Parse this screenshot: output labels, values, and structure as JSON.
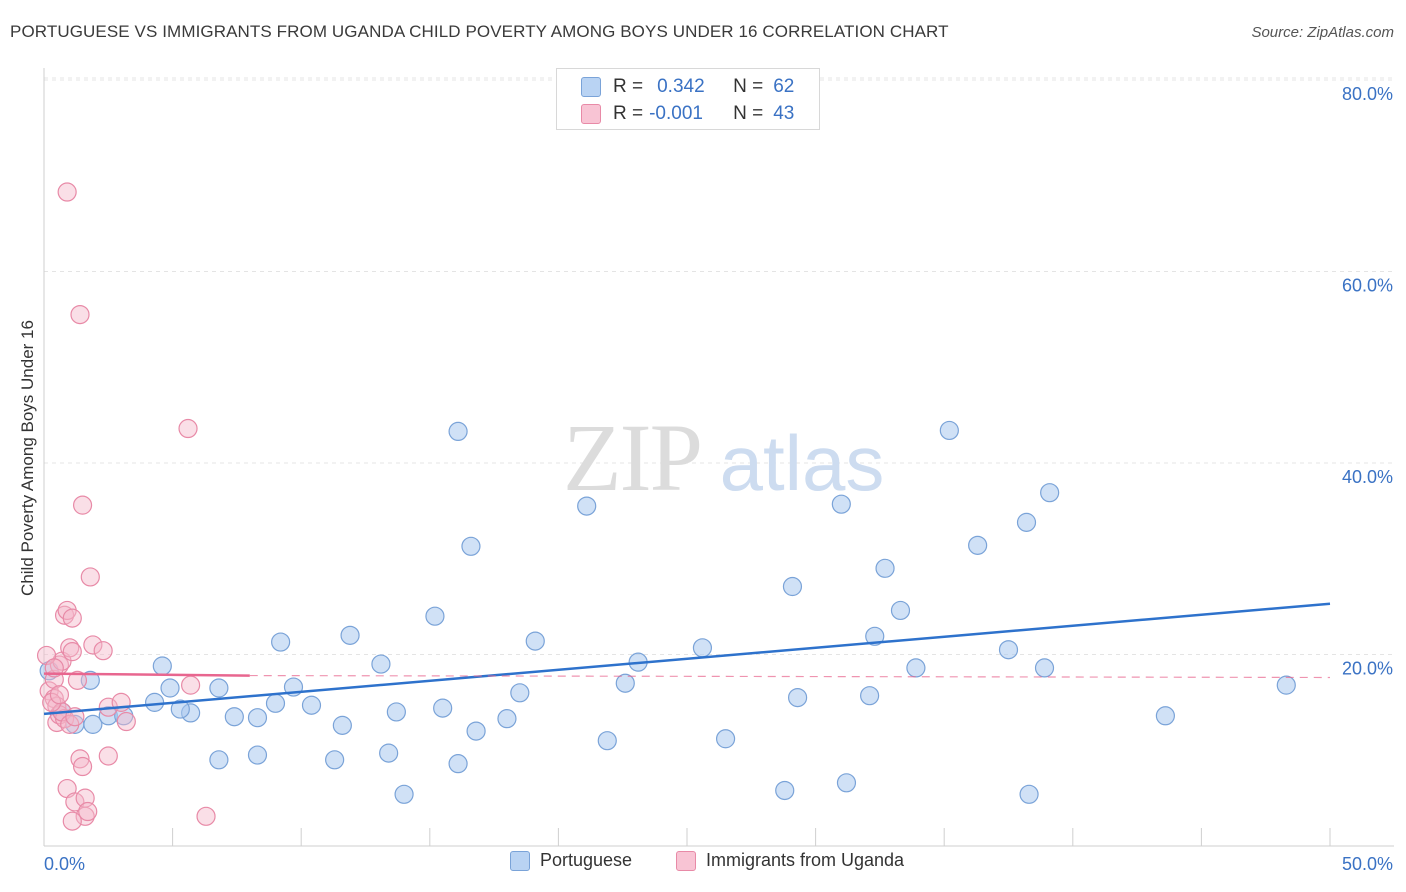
{
  "title": "PORTUGUESE VS IMMIGRANTS FROM UGANDA CHILD POVERTY AMONG BOYS UNDER 16 CORRELATION CHART",
  "source": "Source: ZipAtlas.com",
  "watermark": {
    "zip": "ZIP",
    "atlas": "atlas"
  },
  "colors": {
    "blue_fill": "#a9c8ef",
    "blue_stroke": "#7aa3d8",
    "blue_line": "#2e72cc",
    "pink_fill": "#f5b8ca",
    "pink_stroke": "#e88aa7",
    "pink_line": "#e8668f",
    "axis_text": "#3a72c4",
    "grid": "#e4e4e4"
  },
  "stats": {
    "rows": [
      {
        "swatch": "blue",
        "r_label": "R =",
        "r_value": "0.342",
        "n_label": "N =",
        "n_value": "62"
      },
      {
        "swatch": "pink",
        "r_label": "R =",
        "r_value": "-0.001",
        "n_label": "N =",
        "n_value": "43"
      }
    ]
  },
  "legend": [
    {
      "swatch": "blue",
      "label": "Portuguese"
    },
    {
      "swatch": "pink",
      "label": "Immigrants from Uganda"
    }
  ],
  "chart_data": {
    "type": "scatter",
    "title": "PORTUGUESE VS IMMIGRANTS FROM UGANDA CHILD POVERTY AMONG BOYS UNDER 16 CORRELATION CHART",
    "xlabel": "",
    "ylabel": "Child Poverty Among Boys Under 16",
    "xlim": [
      0,
      50
    ],
    "ylim": [
      0,
      80
    ],
    "x_tick_labels": [
      "0.0%",
      "50.0%"
    ],
    "y_ticks": [
      20,
      40,
      60,
      80
    ],
    "y_tick_labels": [
      "20.0%",
      "40.0%",
      "60.0%",
      "80.0%"
    ],
    "grid": true,
    "series": [
      {
        "name": "Portuguese",
        "color": "blue",
        "points": [
          [
            0.2,
            18.3
          ],
          [
            0.7,
            14.0
          ],
          [
            1.2,
            12.7
          ],
          [
            1.9,
            12.7
          ],
          [
            2.5,
            13.6
          ],
          [
            4.3,
            15.0
          ],
          [
            5.7,
            13.9
          ],
          [
            1.8,
            17.3
          ],
          [
            3.1,
            13.6
          ],
          [
            5.3,
            14.3
          ],
          [
            4.9,
            16.5
          ],
          [
            6.8,
            16.5
          ],
          [
            6.8,
            9.0
          ],
          [
            8.3,
            9.5
          ],
          [
            8.3,
            13.4
          ],
          [
            9.0,
            14.9
          ],
          [
            9.7,
            16.6
          ],
          [
            10.4,
            14.7
          ],
          [
            11.3,
            9.0
          ],
          [
            11.6,
            12.6
          ],
          [
            11.9,
            22.0
          ],
          [
            13.7,
            14.0
          ],
          [
            13.1,
            19.0
          ],
          [
            14.0,
            5.4
          ],
          [
            13.4,
            9.7
          ],
          [
            15.5,
            14.4
          ],
          [
            15.2,
            24.0
          ],
          [
            16.1,
            8.6
          ],
          [
            16.1,
            43.3
          ],
          [
            16.6,
            31.3
          ],
          [
            16.8,
            12.0
          ],
          [
            18.5,
            16.0
          ],
          [
            18.0,
            13.3
          ],
          [
            19.1,
            21.4
          ],
          [
            21.1,
            35.5
          ],
          [
            21.9,
            11.0
          ],
          [
            22.6,
            17.0
          ],
          [
            23.1,
            19.2
          ],
          [
            25.6,
            20.7
          ],
          [
            26.5,
            11.2
          ],
          [
            28.8,
            5.8
          ],
          [
            29.1,
            27.1
          ],
          [
            29.3,
            15.5
          ],
          [
            31.2,
            6.6
          ],
          [
            31.0,
            35.7
          ],
          [
            32.3,
            21.9
          ],
          [
            32.1,
            15.7
          ],
          [
            32.7,
            29.0
          ],
          [
            33.3,
            24.6
          ],
          [
            33.9,
            18.6
          ],
          [
            35.2,
            43.4
          ],
          [
            36.3,
            31.4
          ],
          [
            37.5,
            20.5
          ],
          [
            38.2,
            33.8
          ],
          [
            38.3,
            5.4
          ],
          [
            38.9,
            18.6
          ],
          [
            39.1,
            36.9
          ],
          [
            43.6,
            13.6
          ],
          [
            48.3,
            16.8
          ],
          [
            9.2,
            21.3
          ],
          [
            4.6,
            18.8
          ],
          [
            7.4,
            13.5
          ]
        ]
      },
      {
        "name": "Immigrants from Uganda",
        "color": "pink",
        "points": [
          [
            0.2,
            16.2
          ],
          [
            0.4,
            15.4
          ],
          [
            0.4,
            17.4
          ],
          [
            0.5,
            14.6
          ],
          [
            0.6,
            18.9
          ],
          [
            0.5,
            12.9
          ],
          [
            0.6,
            13.7
          ],
          [
            0.7,
            19.3
          ],
          [
            0.8,
            24.1
          ],
          [
            0.8,
            13.3
          ],
          [
            0.7,
            14.0
          ],
          [
            0.9,
            24.6
          ],
          [
            0.9,
            6.0
          ],
          [
            1.0,
            12.7
          ],
          [
            1.0,
            20.7
          ],
          [
            1.1,
            20.3
          ],
          [
            1.1,
            23.8
          ],
          [
            1.2,
            4.6
          ],
          [
            1.3,
            17.3
          ],
          [
            1.4,
            9.1
          ],
          [
            1.5,
            8.3
          ],
          [
            1.5,
            35.6
          ],
          [
            1.6,
            5.0
          ],
          [
            1.6,
            3.1
          ],
          [
            1.7,
            3.6
          ],
          [
            1.8,
            28.1
          ],
          [
            1.9,
            21.0
          ],
          [
            2.3,
            20.4
          ],
          [
            2.5,
            14.5
          ],
          [
            2.5,
            9.4
          ],
          [
            3.0,
            15.0
          ],
          [
            3.2,
            13.0
          ],
          [
            0.9,
            68.3
          ],
          [
            1.4,
            55.5
          ],
          [
            5.6,
            43.6
          ],
          [
            5.7,
            16.8
          ],
          [
            6.3,
            3.1
          ],
          [
            0.3,
            15.0
          ],
          [
            0.1,
            19.9
          ],
          [
            0.4,
            18.6
          ],
          [
            0.6,
            15.8
          ],
          [
            1.1,
            2.6
          ],
          [
            1.2,
            13.5
          ]
        ]
      }
    ],
    "trend_lines": [
      {
        "series": "Portuguese",
        "from": [
          0,
          13.8
        ],
        "to": [
          50,
          25.3
        ],
        "style": "solid"
      },
      {
        "series": "Immigrants from Uganda",
        "from": [
          0,
          18.0
        ],
        "to": [
          8,
          17.8
        ],
        "style": "solid"
      },
      {
        "series": "Immigrants from Uganda",
        "from": [
          8,
          17.8
        ],
        "to": [
          50,
          17.6
        ],
        "style": "dashed"
      }
    ]
  }
}
